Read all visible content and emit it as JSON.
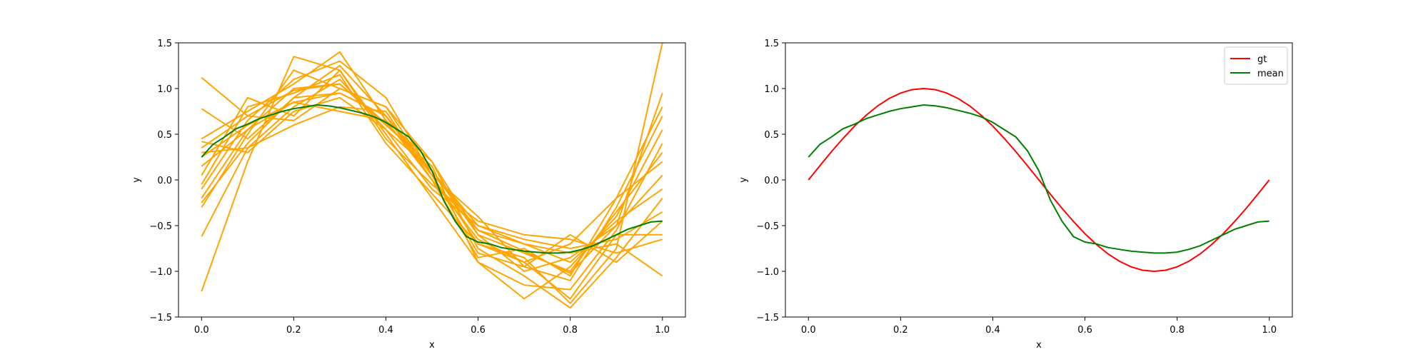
{
  "chart_data": [
    {
      "type": "line",
      "title": "",
      "xlabel": "x",
      "ylabel": "y",
      "xlim": [
        -0.05,
        1.05
      ],
      "ylim": [
        -1.5,
        1.5
      ],
      "xticks": [
        0.0,
        0.2,
        0.4,
        0.6,
        0.8,
        1.0
      ],
      "xtick_labels": [
        "0.0",
        "0.2",
        "0.4",
        "0.6",
        "0.8",
        "1.0"
      ],
      "yticks": [
        -1.5,
        -1.0,
        -0.5,
        0.0,
        0.5,
        1.0,
        1.5
      ],
      "ytick_labels": [
        "−1.5",
        "−1.0",
        "−0.5",
        "0.0",
        "0.5",
        "1.0",
        "1.5"
      ],
      "grid": false,
      "legend": null,
      "samples": {
        "color": "#ffa500",
        "series": [
          {
            "x": [
              0,
              0.1,
              0.2,
              0.3,
              0.4,
              0.5,
              0.6,
              0.7,
              0.8,
              0.9,
              1.0
            ],
            "y": [
              1.12,
              0.7,
              0.98,
              1.05,
              0.62,
              0.1,
              -0.55,
              -0.78,
              -1.02,
              -0.5,
              0.95
            ]
          },
          {
            "x": [
              0,
              0.1,
              0.2,
              0.3,
              0.4,
              0.5,
              0.6,
              0.7,
              0.8,
              0.9,
              1.0
            ],
            "y": [
              -1.22,
              0.2,
              1.35,
              1.2,
              0.5,
              -0.2,
              -0.9,
              -1.3,
              -0.95,
              -0.4,
              0.55
            ]
          },
          {
            "x": [
              0,
              0.1,
              0.2,
              0.3,
              0.4,
              0.5,
              0.6,
              0.7,
              0.8,
              0.9,
              1.0
            ],
            "y": [
              0.78,
              0.45,
              0.9,
              0.95,
              0.7,
              0.05,
              -0.7,
              -0.9,
              -1.3,
              -0.6,
              -0.6
            ]
          },
          {
            "x": [
              0,
              0.1,
              0.2,
              0.3,
              0.4,
              0.5,
              0.6,
              0.7,
              0.8,
              0.9,
              1.0
            ],
            "y": [
              -0.62,
              0.35,
              0.8,
              1.1,
              0.55,
              -0.1,
              -0.5,
              -0.7,
              -0.8,
              -0.7,
              -1.05
            ]
          },
          {
            "x": [
              0,
              0.1,
              0.2,
              0.3,
              0.4,
              0.5,
              0.6,
              0.7,
              0.8,
              0.9,
              1.0
            ],
            "y": [
              0.45,
              0.75,
              1.05,
              1.4,
              0.65,
              0.0,
              -0.65,
              -0.9,
              -0.7,
              -0.2,
              0.2
            ]
          },
          {
            "x": [
              0,
              0.1,
              0.2,
              0.3,
              0.4,
              0.5,
              0.6,
              0.7,
              0.8,
              0.9,
              1.0
            ],
            "y": [
              0.25,
              0.6,
              0.85,
              0.95,
              0.7,
              0.1,
              -0.6,
              -0.8,
              -1.0,
              -0.35,
              0.3
            ]
          },
          {
            "x": [
              0,
              0.1,
              0.2,
              0.3,
              0.4,
              0.5,
              0.6,
              0.7,
              0.8,
              0.9,
              1.0
            ],
            "y": [
              -0.3,
              0.5,
              1.2,
              1.0,
              0.8,
              0.2,
              -0.75,
              -1.05,
              -1.4,
              -0.85,
              -0.2
            ]
          },
          {
            "x": [
              0,
              0.1,
              0.2,
              0.3,
              0.4,
              0.5,
              0.6,
              0.7,
              0.8,
              0.9,
              1.0
            ],
            "y": [
              0.05,
              0.9,
              0.7,
              1.2,
              0.45,
              -0.05,
              -0.45,
              -0.6,
              -0.65,
              -0.8,
              -0.65
            ]
          },
          {
            "x": [
              0,
              0.1,
              0.2,
              0.3,
              0.4,
              0.5,
              0.6,
              0.7,
              0.8,
              0.9,
              1.0
            ],
            "y": [
              -0.2,
              0.55,
              1.0,
              1.05,
              0.6,
              0.15,
              -0.9,
              -1.15,
              -1.2,
              -0.55,
              0.4
            ]
          },
          {
            "x": [
              0,
              0.1,
              0.2,
              0.3,
              0.4,
              0.5,
              0.6,
              0.7,
              0.8,
              0.9,
              1.0
            ],
            "y": [
              0.3,
              0.35,
              0.6,
              0.8,
              0.75,
              0.0,
              -0.55,
              -0.7,
              -0.9,
              -0.45,
              -0.1
            ]
          },
          {
            "x": [
              0,
              0.1,
              0.2,
              0.3,
              0.4,
              0.5,
              0.6,
              0.7,
              0.8,
              0.9,
              1.0
            ],
            "y": [
              -0.1,
              0.65,
              1.1,
              1.3,
              0.9,
              0.05,
              -0.8,
              -0.95,
              -1.1,
              -0.3,
              0.7
            ]
          },
          {
            "x": [
              0,
              0.1,
              0.2,
              0.3,
              0.4,
              0.5,
              0.6,
              0.7,
              0.8,
              0.9,
              1.0
            ],
            "y": [
              0.42,
              0.3,
              0.75,
              0.9,
              0.55,
              0.1,
              -0.5,
              -0.65,
              -0.75,
              -0.65,
              -0.35
            ]
          },
          {
            "x": [
              0,
              0.1,
              0.2,
              0.3,
              0.4,
              0.5,
              0.6,
              0.7,
              0.8,
              0.9,
              1.0
            ],
            "y": [
              -0.05,
              0.8,
              0.95,
              1.15,
              0.4,
              -0.15,
              -0.7,
              -0.85,
              -1.35,
              -0.75,
              1.5
            ]
          },
          {
            "x": [
              0,
              0.1,
              0.2,
              0.3,
              0.4,
              0.5,
              0.6,
              0.7,
              0.8,
              0.9,
              1.0
            ],
            "y": [
              0.15,
              0.55,
              0.85,
              0.75,
              0.65,
              0.2,
              -0.6,
              -1.0,
              -0.85,
              -0.5,
              0.05
            ]
          },
          {
            "x": [
              0,
              0.1,
              0.2,
              0.3,
              0.4,
              0.5,
              0.6,
              0.7,
              0.8,
              0.9,
              1.0
            ],
            "y": [
              -0.25,
              0.4,
              0.9,
              1.25,
              0.7,
              0.0,
              -0.85,
              -0.75,
              -1.05,
              -0.2,
              0.8
            ]
          },
          {
            "x": [
              0,
              0.1,
              0.2,
              0.3,
              0.4,
              0.5,
              0.6,
              0.7,
              0.8,
              0.9,
              1.0
            ],
            "y": [
              0.35,
              0.7,
              0.65,
              1.0,
              0.8,
              0.05,
              -0.4,
              -0.95,
              -0.6,
              -0.9,
              -0.45
            ]
          }
        ]
      },
      "series": [
        {
          "color": "#008000",
          "x": [
            0.0,
            0.025,
            0.05,
            0.075,
            0.1,
            0.125,
            0.15,
            0.175,
            0.2,
            0.225,
            0.25,
            0.275,
            0.3,
            0.325,
            0.35,
            0.375,
            0.4,
            0.425,
            0.45,
            0.475,
            0.5,
            0.525,
            0.55,
            0.575,
            0.6,
            0.625,
            0.65,
            0.675,
            0.7,
            0.725,
            0.75,
            0.775,
            0.8,
            0.825,
            0.85,
            0.875,
            0.9,
            0.925,
            0.95,
            0.975,
            1.0
          ],
          "y": [
            0.25,
            0.39,
            0.47,
            0.56,
            0.61,
            0.67,
            0.71,
            0.75,
            0.78,
            0.8,
            0.82,
            0.81,
            0.79,
            0.76,
            0.73,
            0.69,
            0.63,
            0.55,
            0.47,
            0.32,
            0.1,
            -0.22,
            -0.45,
            -0.62,
            -0.68,
            -0.7,
            -0.74,
            -0.76,
            -0.78,
            -0.79,
            -0.8,
            -0.8,
            -0.79,
            -0.76,
            -0.72,
            -0.66,
            -0.6,
            -0.54,
            -0.5,
            -0.46,
            -0.45
          ]
        }
      ]
    },
    {
      "type": "line",
      "title": "",
      "xlabel": "x",
      "ylabel": "y",
      "xlim": [
        -0.05,
        1.05
      ],
      "ylim": [
        -1.5,
        1.5
      ],
      "xticks": [
        0.0,
        0.2,
        0.4,
        0.6,
        0.8,
        1.0
      ],
      "xtick_labels": [
        "0.0",
        "0.2",
        "0.4",
        "0.6",
        "0.8",
        "1.0"
      ],
      "yticks": [
        -1.5,
        -1.0,
        -0.5,
        0.0,
        0.5,
        1.0,
        1.5
      ],
      "ytick_labels": [
        "−1.5",
        "−1.0",
        "−0.5",
        "0.0",
        "0.5",
        "1.0",
        "1.5"
      ],
      "grid": false,
      "legend": "top-right",
      "series": [
        {
          "name": "gt",
          "color": "#ff0000",
          "x": [
            0.0,
            0.025,
            0.05,
            0.075,
            0.1,
            0.125,
            0.15,
            0.175,
            0.2,
            0.225,
            0.25,
            0.275,
            0.3,
            0.325,
            0.35,
            0.375,
            0.4,
            0.425,
            0.45,
            0.475,
            0.5,
            0.525,
            0.55,
            0.575,
            0.6,
            0.625,
            0.65,
            0.675,
            0.7,
            0.725,
            0.75,
            0.775,
            0.8,
            0.825,
            0.85,
            0.875,
            0.9,
            0.925,
            0.95,
            0.975,
            1.0
          ],
          "y": [
            0.0,
            0.156,
            0.309,
            0.454,
            0.588,
            0.707,
            0.809,
            0.891,
            0.951,
            0.988,
            1.0,
            0.988,
            0.951,
            0.891,
            0.809,
            0.707,
            0.588,
            0.454,
            0.309,
            0.156,
            0.0,
            -0.156,
            -0.309,
            -0.454,
            -0.588,
            -0.707,
            -0.809,
            -0.891,
            -0.951,
            -0.988,
            -1.0,
            -0.988,
            -0.951,
            -0.891,
            -0.809,
            -0.707,
            -0.588,
            -0.454,
            -0.309,
            -0.156,
            0.0
          ]
        },
        {
          "name": "mean",
          "color": "#008000",
          "x": [
            0.0,
            0.025,
            0.05,
            0.075,
            0.1,
            0.125,
            0.15,
            0.175,
            0.2,
            0.225,
            0.25,
            0.275,
            0.3,
            0.325,
            0.35,
            0.375,
            0.4,
            0.425,
            0.45,
            0.475,
            0.5,
            0.525,
            0.55,
            0.575,
            0.6,
            0.625,
            0.65,
            0.675,
            0.7,
            0.725,
            0.75,
            0.775,
            0.8,
            0.825,
            0.85,
            0.875,
            0.9,
            0.925,
            0.95,
            0.975,
            1.0
          ],
          "y": [
            0.25,
            0.39,
            0.47,
            0.56,
            0.61,
            0.67,
            0.71,
            0.75,
            0.78,
            0.8,
            0.82,
            0.81,
            0.79,
            0.76,
            0.73,
            0.69,
            0.63,
            0.55,
            0.47,
            0.32,
            0.1,
            -0.22,
            -0.45,
            -0.62,
            -0.68,
            -0.7,
            -0.74,
            -0.76,
            -0.78,
            -0.79,
            -0.8,
            -0.8,
            -0.79,
            -0.76,
            -0.72,
            -0.66,
            -0.6,
            -0.54,
            -0.5,
            -0.46,
            -0.45
          ]
        }
      ]
    }
  ]
}
